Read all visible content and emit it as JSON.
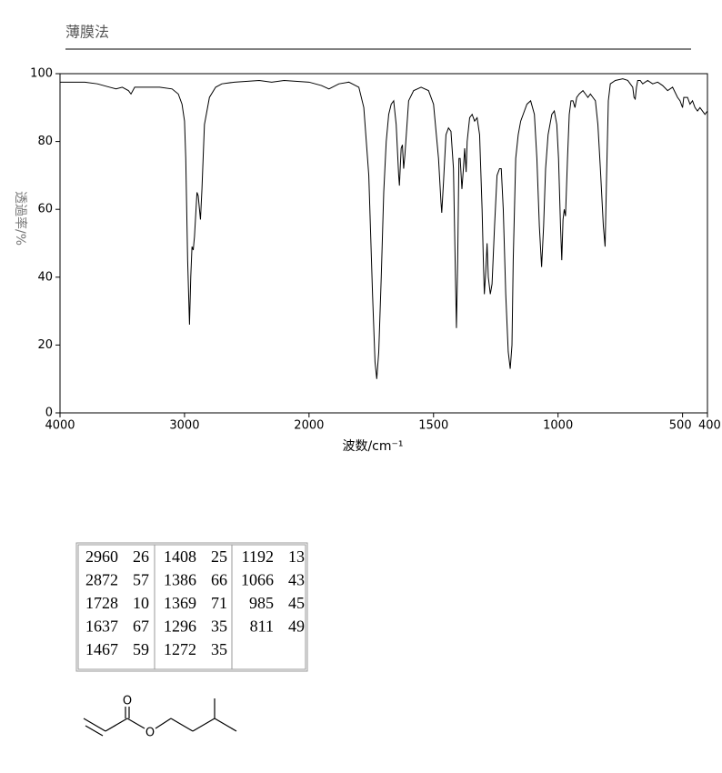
{
  "header": {
    "title": "薄膜法"
  },
  "chart_data": {
    "type": "line",
    "xlabel": "波数/cm⁻¹",
    "ylabel": "透過率/%",
    "xlim": [
      4000,
      400
    ],
    "x_scale_change": {
      "at": 2000,
      "factor": 2
    },
    "xticks": [
      4000,
      3000,
      2000,
      1500,
      1000,
      500,
      400
    ],
    "ylim": [
      0,
      100
    ],
    "yticks": [
      0,
      20,
      40,
      60,
      80,
      100
    ],
    "series": [
      {
        "color": "#000000",
        "x": [
          4000,
          3800,
          3700,
          3600,
          3550,
          3500,
          3450,
          3430,
          3400,
          3200,
          3100,
          3050,
          3020,
          3000,
          2990,
          2975,
          2960,
          2950,
          2940,
          2930,
          2920,
          2900,
          2890,
          2880,
          2872,
          2860,
          2840,
          2800,
          2750,
          2700,
          2600,
          2400,
          2300,
          2200,
          2000,
          1950,
          1920,
          1880,
          1840,
          1800,
          1780,
          1760,
          1745,
          1735,
          1728,
          1720,
          1710,
          1700,
          1690,
          1680,
          1670,
          1660,
          1650,
          1640,
          1637,
          1630,
          1625,
          1620,
          1615,
          1600,
          1580,
          1550,
          1520,
          1500,
          1480,
          1470,
          1467,
          1460,
          1450,
          1440,
          1430,
          1420,
          1412,
          1408,
          1403,
          1398,
          1393,
          1386,
          1380,
          1375,
          1369,
          1365,
          1355,
          1345,
          1335,
          1325,
          1315,
          1305,
          1300,
          1296,
          1290,
          1285,
          1280,
          1272,
          1265,
          1255,
          1245,
          1235,
          1228,
          1220,
          1210,
          1200,
          1192,
          1185,
          1180,
          1170,
          1160,
          1150,
          1140,
          1125,
          1110,
          1095,
          1085,
          1075,
          1066,
          1058,
          1050,
          1040,
          1025,
          1015,
          1005,
          998,
          990,
          985,
          980,
          975,
          970,
          962,
          955,
          948,
          940,
          932,
          925,
          915,
          900,
          890,
          880,
          870,
          860,
          850,
          840,
          830,
          818,
          811,
          805,
          798,
          790,
          770,
          740,
          720,
          700,
          695,
          690,
          685,
          680,
          670,
          660,
          640,
          620,
          600,
          580,
          560,
          540,
          520,
          510,
          500,
          495,
          480,
          470,
          460,
          450,
          440,
          430,
          420,
          410,
          400
        ],
        "values": [
          97.5,
          97.5,
          97,
          96,
          95.5,
          96,
          95,
          94,
          96,
          96,
          95.5,
          94,
          91,
          86,
          75,
          45,
          26,
          40,
          49,
          48,
          52,
          65,
          64,
          60,
          57,
          66,
          85,
          93,
          96,
          97,
          97.5,
          98,
          97.5,
          98,
          97.5,
          96.5,
          95.5,
          97,
          97.5,
          96,
          90,
          70,
          35,
          15,
          10,
          18,
          40,
          65,
          80,
          88,
          91,
          92,
          85,
          70,
          67,
          78,
          79,
          72,
          76,
          92,
          95,
          96,
          95,
          91,
          75,
          62,
          59,
          68,
          82,
          84,
          83,
          72,
          40,
          25,
          45,
          75,
          75,
          66,
          72,
          78,
          71,
          80,
          87,
          88,
          86,
          87,
          82,
          60,
          45,
          35,
          42,
          50,
          40,
          35,
          38,
          55,
          70,
          72,
          72,
          60,
          35,
          18,
          13,
          20,
          45,
          75,
          82,
          86,
          88,
          91,
          92,
          88,
          75,
          55,
          43,
          55,
          72,
          82,
          88,
          89,
          85,
          75,
          55,
          45,
          57,
          60,
          58,
          75,
          88,
          92,
          92,
          90,
          93,
          94,
          95,
          94,
          93,
          94,
          93,
          92,
          85,
          72,
          55,
          49,
          70,
          92,
          97,
          98,
          98.5,
          98,
          96,
          93,
          92.5,
          96,
          98,
          98,
          97,
          98,
          97,
          97.5,
          96.5,
          95,
          96,
          93,
          92,
          90,
          93,
          93,
          91,
          92,
          90,
          89,
          90,
          89,
          88,
          89
        ]
      }
    ]
  },
  "peak_table": {
    "columns": [
      [
        [
          2960,
          26
        ],
        [
          2872,
          57
        ],
        [
          1728,
          10
        ],
        [
          1637,
          67
        ],
        [
          1467,
          59
        ]
      ],
      [
        [
          1408,
          25
        ],
        [
          1386,
          66
        ],
        [
          1369,
          71
        ],
        [
          1296,
          35
        ],
        [
          1272,
          35
        ]
      ],
      [
        [
          1192,
          13
        ],
        [
          1066,
          43
        ],
        [
          985,
          45
        ],
        [
          811,
          49
        ]
      ]
    ]
  },
  "structure": {
    "atoms": [
      "O",
      "O"
    ]
  }
}
